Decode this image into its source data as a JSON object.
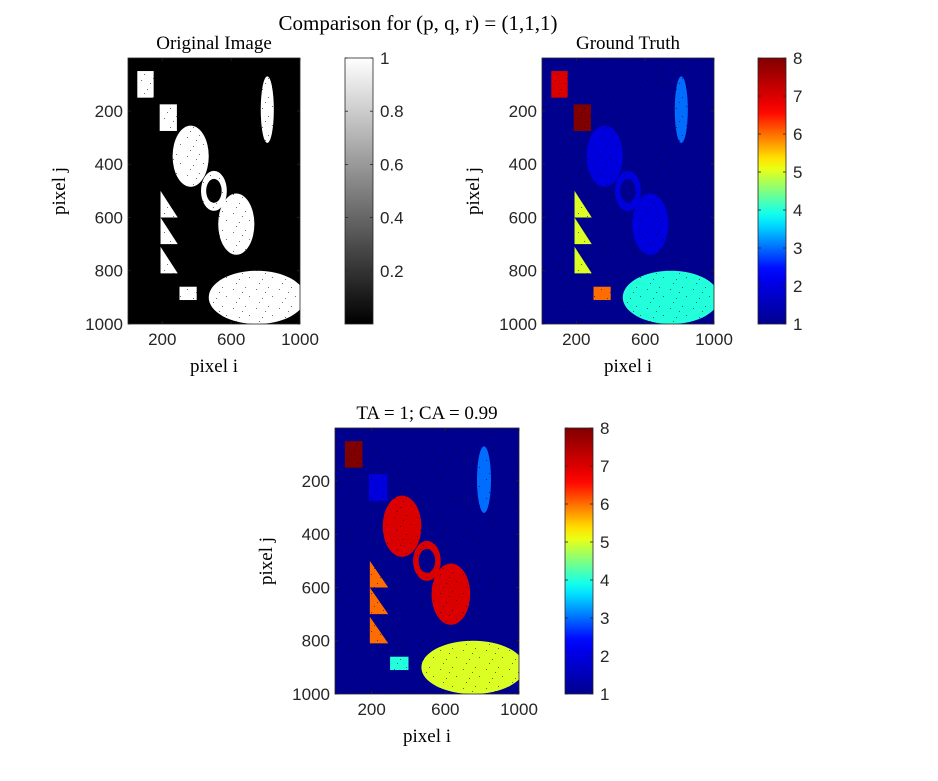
{
  "figure": {
    "title": "Comparison for (p, q, r) = (1,1,1)"
  },
  "colormaps": {
    "gray_stops": [
      "#000000",
      "#ffffff"
    ],
    "jet_stops": [
      "#00008f",
      "#0000ff",
      "#00ffff",
      "#ffff00",
      "#ff0000",
      "#800000"
    ]
  },
  "chart_data": [
    {
      "type": "heatmap",
      "title": "Original Image",
      "xlabel": "pixel i",
      "ylabel": "pixel j",
      "xlim": [
        1,
        1000
      ],
      "ylim": [
        1,
        1000
      ],
      "xticks": [
        200,
        600,
        1000
      ],
      "yticks": [
        200,
        400,
        600,
        800,
        1000
      ],
      "colormap": "gray",
      "clim": [
        0,
        1
      ],
      "colorbar_ticks": [
        0.2,
        0.4,
        0.6,
        0.8,
        1
      ],
      "colorbar_tick_labels": [
        "0.2",
        "0.4",
        "0.6",
        "0.8",
        "1"
      ],
      "background_value": 0,
      "regions": [
        {
          "shape": "rect",
          "x": [
            55,
            150
          ],
          "y": [
            50,
            150
          ],
          "value": 1
        },
        {
          "shape": "rect",
          "x": [
            185,
            285
          ],
          "y": [
            175,
            275
          ],
          "value": 1
        },
        {
          "shape": "ellipse",
          "cx": 810,
          "cy": 195,
          "rx": 38,
          "ry": 125,
          "value": 1
        },
        {
          "shape": "ellipse",
          "cx": 365,
          "cy": 370,
          "rx": 105,
          "ry": 115,
          "value": 1
        },
        {
          "shape": "ring",
          "cx": 500,
          "cy": 500,
          "r_outer": 75,
          "r_inner": 45,
          "value": 1
        },
        {
          "shape": "ellipse",
          "cx": 630,
          "cy": 625,
          "rx": 105,
          "ry": 115,
          "value": 1
        },
        {
          "shape": "triangle",
          "x": [
            190,
            190,
            290
          ],
          "y": [
            500,
            600,
            600
          ],
          "value": 1
        },
        {
          "shape": "triangle",
          "x": [
            190,
            190,
            290
          ],
          "y": [
            600,
            700,
            700
          ],
          "value": 1
        },
        {
          "shape": "triangle",
          "x": [
            190,
            190,
            290
          ],
          "y": [
            710,
            810,
            810
          ],
          "value": 1
        },
        {
          "shape": "rect",
          "x": [
            300,
            400
          ],
          "y": [
            860,
            910
          ],
          "value": 1
        },
        {
          "shape": "ellipse",
          "cx": 750,
          "cy": 900,
          "rx": 280,
          "ry": 100,
          "value": 1
        }
      ]
    },
    {
      "type": "heatmap",
      "title": "Ground Truth",
      "xlabel": "pixel i",
      "ylabel": "pixel j",
      "xlim": [
        1,
        1000
      ],
      "ylim": [
        1,
        1000
      ],
      "xticks": [
        200,
        600,
        1000
      ],
      "yticks": [
        200,
        400,
        600,
        800,
        1000
      ],
      "colormap": "jet",
      "clim": [
        1,
        8
      ],
      "colorbar_ticks": [
        1,
        2,
        3,
        4,
        5,
        6,
        7,
        8
      ],
      "colorbar_tick_labels": [
        "1",
        "2",
        "3",
        "4",
        "5",
        "6",
        "7",
        "8"
      ],
      "background_value": 1,
      "regions": [
        {
          "shape": "rect",
          "x": [
            55,
            150
          ],
          "y": [
            50,
            150
          ],
          "value": 7
        },
        {
          "shape": "rect",
          "x": [
            185,
            285
          ],
          "y": [
            175,
            275
          ],
          "value": 8
        },
        {
          "shape": "ellipse",
          "cx": 810,
          "cy": 195,
          "rx": 38,
          "ry": 125,
          "value": 3
        },
        {
          "shape": "ellipse",
          "cx": 365,
          "cy": 370,
          "rx": 105,
          "ry": 115,
          "value": 2
        },
        {
          "shape": "ring",
          "cx": 500,
          "cy": 500,
          "r_outer": 75,
          "r_inner": 45,
          "value": 2
        },
        {
          "shape": "ellipse",
          "cx": 630,
          "cy": 625,
          "rx": 105,
          "ry": 115,
          "value": 2
        },
        {
          "shape": "triangle",
          "x": [
            190,
            190,
            290
          ],
          "y": [
            500,
            600,
            600
          ],
          "value": 5
        },
        {
          "shape": "triangle",
          "x": [
            190,
            190,
            290
          ],
          "y": [
            600,
            700,
            700
          ],
          "value": 5
        },
        {
          "shape": "triangle",
          "x": [
            190,
            190,
            290
          ],
          "y": [
            710,
            810,
            810
          ],
          "value": 5
        },
        {
          "shape": "rect",
          "x": [
            300,
            400
          ],
          "y": [
            860,
            910
          ],
          "value": 6
        },
        {
          "shape": "ellipse",
          "cx": 750,
          "cy": 900,
          "rx": 280,
          "ry": 100,
          "value": 4
        }
      ]
    },
    {
      "type": "heatmap",
      "title": "TA = 1; CA = 0.99",
      "xlabel": "pixel i",
      "ylabel": "pixel j",
      "xlim": [
        1,
        1000
      ],
      "ylim": [
        1,
        1000
      ],
      "xticks": [
        200,
        600,
        1000
      ],
      "yticks": [
        200,
        400,
        600,
        800,
        1000
      ],
      "colormap": "jet",
      "clim": [
        1,
        8
      ],
      "colorbar_ticks": [
        1,
        2,
        3,
        4,
        5,
        6,
        7,
        8
      ],
      "colorbar_tick_labels": [
        "1",
        "2",
        "3",
        "4",
        "5",
        "6",
        "7",
        "8"
      ],
      "background_value": 1,
      "regions": [
        {
          "shape": "rect",
          "x": [
            55,
            150
          ],
          "y": [
            50,
            150
          ],
          "value": 8
        },
        {
          "shape": "rect",
          "x": [
            185,
            285
          ],
          "y": [
            175,
            275
          ],
          "value": 2
        },
        {
          "shape": "ellipse",
          "cx": 810,
          "cy": 195,
          "rx": 38,
          "ry": 125,
          "value": 3
        },
        {
          "shape": "ellipse",
          "cx": 365,
          "cy": 370,
          "rx": 105,
          "ry": 115,
          "value": 7
        },
        {
          "shape": "ring",
          "cx": 500,
          "cy": 500,
          "r_outer": 75,
          "r_inner": 45,
          "value": 7
        },
        {
          "shape": "ellipse",
          "cx": 630,
          "cy": 625,
          "rx": 105,
          "ry": 115,
          "value": 7
        },
        {
          "shape": "triangle",
          "x": [
            190,
            190,
            290
          ],
          "y": [
            500,
            600,
            600
          ],
          "value": 6
        },
        {
          "shape": "triangle",
          "x": [
            190,
            190,
            290
          ],
          "y": [
            600,
            700,
            700
          ],
          "value": 6
        },
        {
          "shape": "triangle",
          "x": [
            190,
            190,
            290
          ],
          "y": [
            710,
            810,
            810
          ],
          "value": 6
        },
        {
          "shape": "rect",
          "x": [
            300,
            400
          ],
          "y": [
            860,
            910
          ],
          "value": 4
        },
        {
          "shape": "ellipse",
          "cx": 750,
          "cy": 900,
          "rx": 280,
          "ry": 100,
          "value": 5
        }
      ]
    }
  ]
}
